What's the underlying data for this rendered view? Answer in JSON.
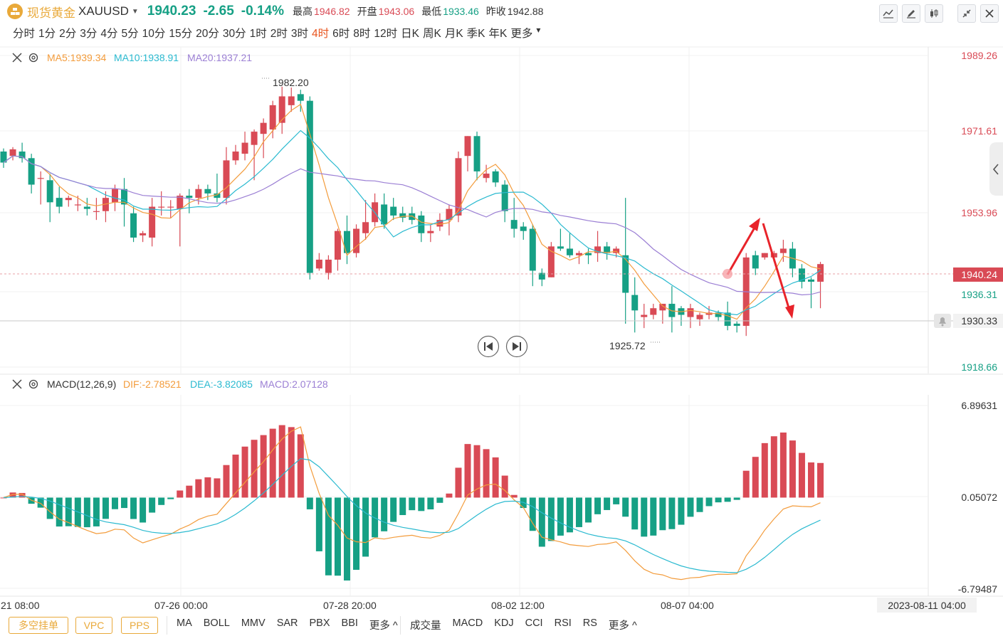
{
  "header": {
    "name": "现货黄金",
    "code": "XAUUSD",
    "price": "1940.23",
    "change": "-2.65",
    "change_pct": "-0.14%",
    "high_label": "最高",
    "high": "1946.82",
    "open_label": "开盘",
    "open": "1943.06",
    "low_label": "最低",
    "low": "1933.46",
    "prev_label": "昨收",
    "prev": "1942.88"
  },
  "periods": [
    "分时",
    "1分",
    "2分",
    "3分",
    "4分",
    "5分",
    "10分",
    "15分",
    "20分",
    "30分",
    "1时",
    "2时",
    "3时",
    "4时",
    "6时",
    "8时",
    "12时",
    "日K",
    "周K",
    "月K",
    "季K",
    "年K",
    "更多"
  ],
  "active_period": "4时",
  "main_legend": {
    "ma5": "MA5:1939.34",
    "ma10": "MA10:1938.91",
    "ma20": "MA20:1937.21"
  },
  "macd_legend": {
    "name": "MACD(12,26,9)",
    "dif": "DIF:-2.78521",
    "dea": "DEA:-3.82085",
    "macd": "MACD:2.07128"
  },
  "bottom": {
    "buttons": [
      "多空挂单",
      "VPC",
      "PPS"
    ],
    "main_indicators": [
      "MA",
      "BOLL",
      "MMV",
      "SAR",
      "PBX",
      "BBI",
      "更多 ^"
    ],
    "sub_indicators": [
      "成交量",
      "MACD",
      "KDJ",
      "CCI",
      "RSI",
      "RS",
      "更多 ^"
    ]
  },
  "colors": {
    "up": "#d94a55",
    "down": "#16a085",
    "ma5": "#f39c3c",
    "ma10": "#2bbad0",
    "ma20": "#9b7fd4",
    "accent": "#e9a93a",
    "active": "#e8541e"
  },
  "chart_data": [
    {
      "type": "candlestick",
      "title": "XAUUSD 4时",
      "price_axis_labels": [
        "1989.26",
        "1971.61",
        "1953.96",
        "1936.31",
        "1918.66"
      ],
      "ylim": [
        1918.66,
        1989.26
      ],
      "last_price_label": "1940.24",
      "crosshair_label": "1930.33",
      "high_annotation": "1982.20",
      "low_annotation": "1925.72",
      "x_tick_labels": [
        "21 08:00",
        "07-26 00:00",
        "07-28 20:00",
        "08-02 12:00",
        "08-07 04:00"
      ],
      "cursor_time": "2023-08-11 04:00",
      "candles": [
        {
          "o": 1967.5,
          "h": 1968.2,
          "c": 1965.0,
          "l": 1963.8
        },
        {
          "o": 1966.5,
          "h": 1968.5,
          "c": 1968.0,
          "l": 1965.5
        },
        {
          "o": 1967.5,
          "h": 1969.5,
          "c": 1966.0,
          "l": 1965.0
        },
        {
          "o": 1966.0,
          "h": 1967.0,
          "c": 1960.0,
          "l": 1958.0
        },
        {
          "o": 1961.5,
          "h": 1963.0,
          "c": 1961.5,
          "l": 1955.5
        },
        {
          "o": 1961.0,
          "h": 1962.5,
          "c": 1956.0,
          "l": 1951.5
        },
        {
          "o": 1957.0,
          "h": 1959.5,
          "c": 1955.0,
          "l": 1953.5
        },
        {
          "o": 1956.5,
          "h": 1957.5,
          "c": 1957.0,
          "l": 1955.0
        },
        {
          "o": 1955.5,
          "h": 1957.5,
          "c": 1955.5,
          "l": 1954.0
        },
        {
          "o": 1955.0,
          "h": 1957.0,
          "c": 1954.5,
          "l": 1953.0
        },
        {
          "o": 1954.0,
          "h": 1957.0,
          "c": 1954.0,
          "l": 1952.0
        },
        {
          "o": 1954.0,
          "h": 1958.5,
          "c": 1957.0,
          "l": 1951.5
        },
        {
          "o": 1956.0,
          "h": 1960.0,
          "c": 1959.0,
          "l": 1954.0
        },
        {
          "o": 1959.0,
          "h": 1961.5,
          "c": 1955.5,
          "l": 1950.5
        },
        {
          "o": 1953.5,
          "h": 1955.0,
          "c": 1948.0,
          "l": 1947.0
        },
        {
          "o": 1948.5,
          "h": 1949.5,
          "c": 1949.0,
          "l": 1947.0
        },
        {
          "o": 1948.0,
          "h": 1957.0,
          "c": 1955.0,
          "l": 1946.0
        },
        {
          "o": 1955.0,
          "h": 1958.5,
          "c": 1955.0,
          "l": 1953.0
        },
        {
          "o": 1955.0,
          "h": 1956.5,
          "c": 1955.0,
          "l": 1952.5
        },
        {
          "o": 1954.5,
          "h": 1958.0,
          "c": 1957.5,
          "l": 1946.0
        },
        {
          "o": 1957.5,
          "h": 1959.0,
          "c": 1957.0,
          "l": 1953.5
        },
        {
          "o": 1957.0,
          "h": 1960.0,
          "c": 1959.0,
          "l": 1955.5
        },
        {
          "o": 1959.0,
          "h": 1960.0,
          "c": 1958.0,
          "l": 1956.5
        },
        {
          "o": 1958.0,
          "h": 1962.5,
          "c": 1957.0,
          "l": 1956.0
        },
        {
          "o": 1957.0,
          "h": 1968.5,
          "c": 1965.5,
          "l": 1955.5
        },
        {
          "o": 1965.5,
          "h": 1969.0,
          "c": 1967.5,
          "l": 1964.5
        },
        {
          "o": 1967.0,
          "h": 1972.0,
          "c": 1969.5,
          "l": 1965.5
        },
        {
          "o": 1969.0,
          "h": 1972.5,
          "c": 1972.0,
          "l": 1961.0
        },
        {
          "o": 1971.5,
          "h": 1975.0,
          "c": 1974.0,
          "l": 1966.0
        },
        {
          "o": 1972.5,
          "h": 1979.0,
          "c": 1978.0,
          "l": 1970.5
        },
        {
          "o": 1974.0,
          "h": 1982.2,
          "c": 1980.0,
          "l": 1971.5
        },
        {
          "o": 1978.0,
          "h": 1982.0,
          "c": 1980.0,
          "l": 1976.5
        },
        {
          "o": 1980.5,
          "h": 1981.5,
          "c": 1979.0,
          "l": 1976.5
        },
        {
          "o": 1979.0,
          "h": 1980.0,
          "c": 1940.0,
          "l": 1938.5
        },
        {
          "o": 1941.0,
          "h": 1944.5,
          "c": 1943.0,
          "l": 1940.5
        },
        {
          "o": 1940.0,
          "h": 1944.0,
          "c": 1943.0,
          "l": 1938.5
        },
        {
          "o": 1943.0,
          "h": 1950.0,
          "c": 1949.5,
          "l": 1940.5
        },
        {
          "o": 1949.5,
          "h": 1953.0,
          "c": 1944.5,
          "l": 1942.0
        },
        {
          "o": 1944.5,
          "h": 1951.0,
          "c": 1950.0,
          "l": 1943.5
        },
        {
          "o": 1949.0,
          "h": 1956.5,
          "c": 1951.5,
          "l": 1947.5
        },
        {
          "o": 1951.5,
          "h": 1958.0,
          "c": 1956.0,
          "l": 1950.5
        },
        {
          "o": 1955.5,
          "h": 1958.0,
          "c": 1951.0,
          "l": 1950.0
        },
        {
          "o": 1955.0,
          "h": 1957.0,
          "c": 1953.0,
          "l": 1952.0
        },
        {
          "o": 1953.5,
          "h": 1955.0,
          "c": 1952.5,
          "l": 1951.5
        },
        {
          "o": 1953.5,
          "h": 1955.0,
          "c": 1952.0,
          "l": 1951.0
        },
        {
          "o": 1953.0,
          "h": 1954.0,
          "c": 1949.0,
          "l": 1947.0
        },
        {
          "o": 1949.0,
          "h": 1951.0,
          "c": 1949.5,
          "l": 1947.0
        },
        {
          "o": 1950.5,
          "h": 1953.5,
          "c": 1952.0,
          "l": 1949.5
        },
        {
          "o": 1952.0,
          "h": 1955.5,
          "c": 1954.5,
          "l": 1948.5
        },
        {
          "o": 1953.0,
          "h": 1967.5,
          "c": 1966.0,
          "l": 1951.5
        },
        {
          "o": 1966.5,
          "h": 1971.0,
          "c": 1971.0,
          "l": 1963.0
        },
        {
          "o": 1971.0,
          "h": 1972.0,
          "c": 1963.0,
          "l": 1961.0
        },
        {
          "o": 1961.5,
          "h": 1964.5,
          "c": 1962.5,
          "l": 1960.5
        },
        {
          "o": 1963.0,
          "h": 1963.5,
          "c": 1960.5,
          "l": 1959.5
        },
        {
          "o": 1960.0,
          "h": 1961.0,
          "c": 1954.0,
          "l": 1951.5
        },
        {
          "o": 1952.0,
          "h": 1957.0,
          "c": 1950.0,
          "l": 1948.0
        },
        {
          "o": 1950.5,
          "h": 1951.5,
          "c": 1949.5,
          "l": 1947.5
        },
        {
          "o": 1950.0,
          "h": 1951.0,
          "c": 1940.5,
          "l": 1937.0
        },
        {
          "o": 1940.0,
          "h": 1941.0,
          "c": 1938.5,
          "l": 1937.0
        },
        {
          "o": 1939.0,
          "h": 1947.0,
          "c": 1946.0,
          "l": 1939.0
        },
        {
          "o": 1946.0,
          "h": 1950.0,
          "c": 1945.5,
          "l": 1945.0
        },
        {
          "o": 1945.5,
          "h": 1949.0,
          "c": 1944.0,
          "l": 1943.5
        },
        {
          "o": 1944.0,
          "h": 1945.0,
          "c": 1944.5,
          "l": 1942.0
        },
        {
          "o": 1944.5,
          "h": 1945.5,
          "c": 1944.0,
          "l": 1942.0
        },
        {
          "o": 1944.5,
          "h": 1949.5,
          "c": 1946.0,
          "l": 1942.5
        },
        {
          "o": 1946.0,
          "h": 1947.0,
          "c": 1944.5,
          "l": 1943.0
        },
        {
          "o": 1944.5,
          "h": 1946.0,
          "c": 1945.5,
          "l": 1943.5
        },
        {
          "o": 1944.0,
          "h": 1957.0,
          "c": 1935.5,
          "l": 1928.5
        },
        {
          "o": 1935.0,
          "h": 1939.0,
          "c": 1931.5,
          "l": 1926.5
        },
        {
          "o": 1930.0,
          "h": 1933.0,
          "c": 1930.5,
          "l": 1927.5
        },
        {
          "o": 1930.5,
          "h": 1933.0,
          "c": 1932.0,
          "l": 1929.5
        },
        {
          "o": 1931.5,
          "h": 1933.0,
          "c": 1933.0,
          "l": 1928.5
        },
        {
          "o": 1933.0,
          "h": 1937.0,
          "c": 1930.0,
          "l": 1926.5
        },
        {
          "o": 1932.0,
          "h": 1932.5,
          "c": 1930.5,
          "l": 1928.0
        },
        {
          "o": 1930.0,
          "h": 1933.0,
          "c": 1932.0,
          "l": 1927.5
        },
        {
          "o": 1929.5,
          "h": 1931.0,
          "c": 1930.5,
          "l": 1928.0
        },
        {
          "o": 1930.5,
          "h": 1932.5,
          "c": 1931.0,
          "l": 1929.5
        },
        {
          "o": 1931.0,
          "h": 1931.5,
          "c": 1930.0,
          "l": 1929.0
        },
        {
          "o": 1931.0,
          "h": 1933.5,
          "c": 1928.0,
          "l": 1927.0
        },
        {
          "o": 1928.5,
          "h": 1929.0,
          "c": 1928.0,
          "l": 1926.5
        },
        {
          "o": 1928.0,
          "h": 1944.5,
          "c": 1943.5,
          "l": 1925.72
        },
        {
          "o": 1944.0,
          "h": 1945.0,
          "c": 1941.0,
          "l": 1939.5
        },
        {
          "o": 1943.5,
          "h": 1944.5,
          "c": 1944.5,
          "l": 1943.0
        },
        {
          "o": 1943.5,
          "h": 1945.0,
          "c": 1944.5,
          "l": 1942.5
        },
        {
          "o": 1944.5,
          "h": 1947.5,
          "c": 1945.5,
          "l": 1942.5
        },
        {
          "o": 1945.5,
          "h": 1947.0,
          "c": 1941.0,
          "l": 1939.0
        },
        {
          "o": 1941.0,
          "h": 1942.0,
          "c": 1938.0,
          "l": 1936.5
        },
        {
          "o": 1938.5,
          "h": 1939.0,
          "c": 1938.0,
          "l": 1932.0
        },
        {
          "o": 1938.0,
          "h": 1942.5,
          "c": 1942.0,
          "l": 1932.0
        }
      ]
    },
    {
      "type": "macd",
      "title": "MACD(12,26,9)",
      "axis_labels": [
        "6.89631",
        "0.05072",
        "-6.79487"
      ],
      "ylim": [
        -6.79487,
        6.89631
      ]
    }
  ]
}
